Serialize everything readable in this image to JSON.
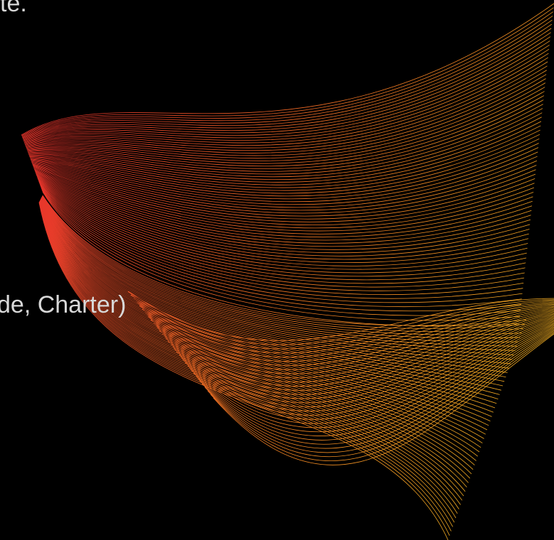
{
  "texts": {
    "top": "te.",
    "middle": "de, Charter)"
  }
}
